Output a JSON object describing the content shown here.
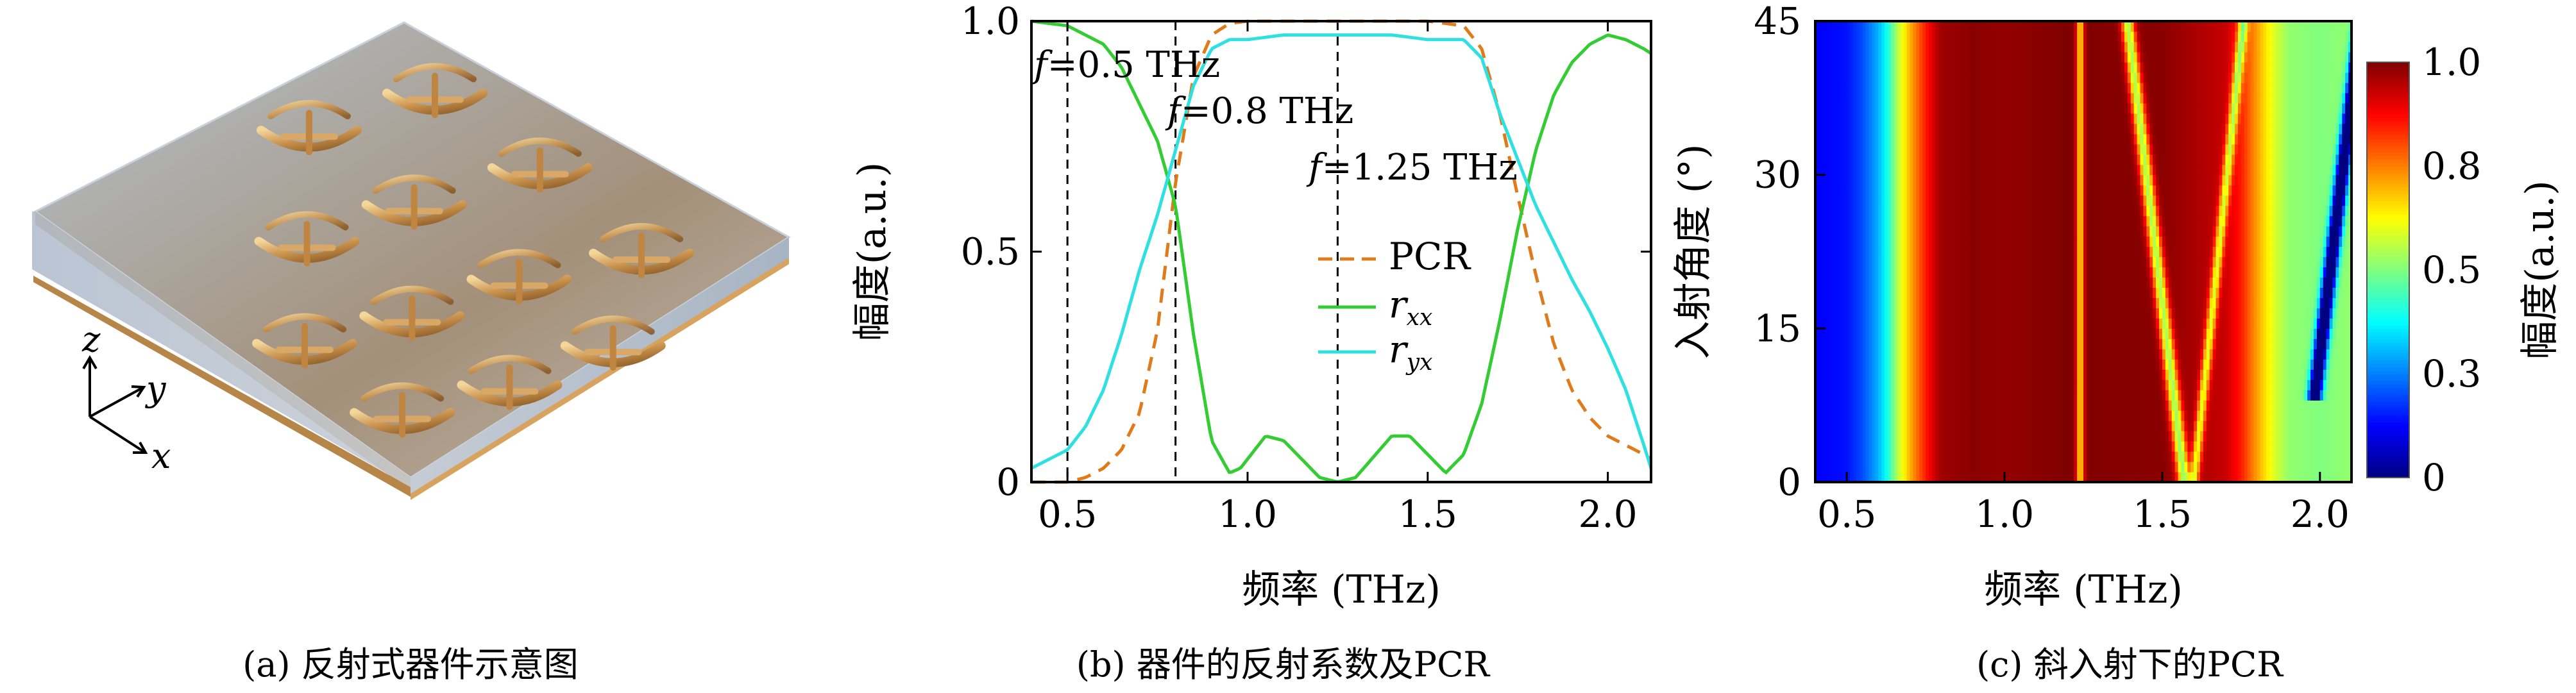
{
  "captions": {
    "a": "(a) 反射式器件示意图",
    "b": "(b) 器件的反射系数及PCR",
    "c": "(c) 斜入射下的PCR"
  },
  "panel_a": {
    "axes_labels": {
      "z": "z",
      "y": "y",
      "x": "x"
    },
    "colors": {
      "gold": "#c9924d",
      "substrate": "#9fb2c4"
    }
  },
  "chart_data": [
    {
      "type": "line",
      "xlabel": "频率 (THz)",
      "ylabel": "幅度(a.u.)",
      "xlim": [
        0.4,
        2.12
      ],
      "ylim": [
        0,
        1
      ],
      "xticks": [
        "0.5",
        "1.0",
        "1.5",
        "2.0"
      ],
      "xtick_values": [
        0.5,
        1.0,
        1.5,
        2.0
      ],
      "yticks": [
        "0",
        "0.5",
        "1.0"
      ],
      "ytick_values": [
        0,
        0.5,
        1.0
      ],
      "legend": "center-right",
      "annotations": [
        {
          "italic": "f",
          "text": "=0.5 THz",
          "x": 0.5
        },
        {
          "italic": "f",
          "text": "=0.8 THz",
          "x": 0.8
        },
        {
          "italic": "f",
          "text": "=1.25 THz",
          "x": 1.25
        }
      ],
      "series": [
        {
          "name": "PCR",
          "color": "#e07b1a",
          "dash": true,
          "x": [
            0.4,
            0.5,
            0.55,
            0.6,
            0.65,
            0.7,
            0.75,
            0.8,
            0.85,
            0.9,
            0.95,
            1.0,
            1.1,
            1.2,
            1.3,
            1.4,
            1.5,
            1.6,
            1.65,
            1.7,
            1.75,
            1.8,
            1.85,
            1.9,
            1.95,
            2.0,
            2.05,
            2.1,
            2.12
          ],
          "y": [
            0.0,
            0.0,
            0.01,
            0.03,
            0.07,
            0.15,
            0.33,
            0.65,
            0.88,
            0.97,
            0.995,
            1.0,
            1.0,
            1.0,
            1.0,
            1.0,
            1.0,
            0.99,
            0.94,
            0.8,
            0.62,
            0.45,
            0.3,
            0.2,
            0.14,
            0.1,
            0.08,
            0.06,
            0.05
          ]
        },
        {
          "name": "r",
          "sub": "xx",
          "color": "#33cc33",
          "dash": false,
          "x": [
            0.4,
            0.5,
            0.6,
            0.65,
            0.7,
            0.75,
            0.8,
            0.85,
            0.9,
            0.95,
            0.98,
            1.05,
            1.1,
            1.15,
            1.2,
            1.25,
            1.3,
            1.4,
            1.45,
            1.5,
            1.55,
            1.6,
            1.65,
            1.7,
            1.75,
            1.8,
            1.85,
            1.9,
            1.95,
            2.0,
            2.05,
            2.1,
            2.12
          ],
          "y": [
            1.0,
            0.99,
            0.95,
            0.9,
            0.82,
            0.74,
            0.6,
            0.32,
            0.09,
            0.02,
            0.03,
            0.1,
            0.09,
            0.05,
            0.01,
            0.0,
            0.01,
            0.1,
            0.1,
            0.06,
            0.02,
            0.06,
            0.17,
            0.35,
            0.55,
            0.72,
            0.84,
            0.91,
            0.95,
            0.97,
            0.96,
            0.94,
            0.93
          ]
        },
        {
          "name": "r",
          "sub": "yx",
          "color": "#2ee0e0",
          "dash": false,
          "x": [
            0.4,
            0.5,
            0.55,
            0.6,
            0.65,
            0.7,
            0.75,
            0.8,
            0.85,
            0.9,
            0.95,
            1.0,
            1.1,
            1.2,
            1.3,
            1.4,
            1.5,
            1.6,
            1.65,
            1.7,
            1.75,
            1.8,
            1.85,
            1.9,
            1.95,
            2.0,
            2.05,
            2.1,
            2.12
          ],
          "y": [
            0.03,
            0.07,
            0.12,
            0.2,
            0.32,
            0.46,
            0.58,
            0.72,
            0.86,
            0.94,
            0.96,
            0.96,
            0.97,
            0.97,
            0.97,
            0.97,
            0.96,
            0.96,
            0.92,
            0.8,
            0.7,
            0.6,
            0.52,
            0.44,
            0.37,
            0.29,
            0.2,
            0.08,
            0.03
          ]
        }
      ]
    },
    {
      "type": "heatmap",
      "xlabel": "频率 (THz)",
      "ylabel": "入射角度 (°)",
      "colorbar_label": "幅度(a.u.)",
      "xlim": [
        0.4,
        2.1
      ],
      "ylim": [
        0,
        45
      ],
      "xticks": [
        "0.5",
        "1.0",
        "1.5",
        "2.0"
      ],
      "xtick_values": [
        0.5,
        1.0,
        1.5,
        2.0
      ],
      "yticks": [
        "0",
        "15",
        "30",
        "45"
      ],
      "ytick_values": [
        0,
        15,
        30,
        45
      ],
      "colorbar_ticks": [
        "0",
        "0.3",
        "0.5",
        "0.8",
        "1.0"
      ],
      "colorbar_tick_values": [
        0,
        0.25,
        0.5,
        0.75,
        1.0
      ],
      "colormap": "jet",
      "base_profile": {
        "x": [
          0.4,
          0.5,
          0.55,
          0.6,
          0.63,
          0.66,
          0.7,
          0.74,
          0.78,
          0.8,
          0.9,
          1.0,
          1.1,
          1.2,
          1.5,
          1.7,
          1.75,
          1.8,
          1.85,
          1.9,
          2.0,
          2.1
        ],
        "v": [
          0.12,
          0.14,
          0.2,
          0.3,
          0.4,
          0.55,
          0.7,
          0.82,
          0.93,
          0.97,
          0.99,
          0.98,
          0.99,
          1.0,
          0.99,
          0.93,
          0.85,
          0.72,
          0.6,
          0.52,
          0.5,
          0.52
        ]
      },
      "dips": [
        {
          "x0": 1.24,
          "slope": 0.0,
          "width": 0.012,
          "depth": 0.35,
          "y_max": 45
        },
        {
          "x0": 1.57,
          "slope": -0.004,
          "width": 0.02,
          "depth": 0.45,
          "y_max": 45
        },
        {
          "x0": 1.6,
          "slope": 0.0035,
          "width": 0.015,
          "depth": 0.35,
          "y_max": 45
        },
        {
          "x0": 1.95,
          "slope": 0.004,
          "width": 0.02,
          "depth": 0.75,
          "y_min": 8,
          "y_max": 45
        }
      ]
    }
  ]
}
